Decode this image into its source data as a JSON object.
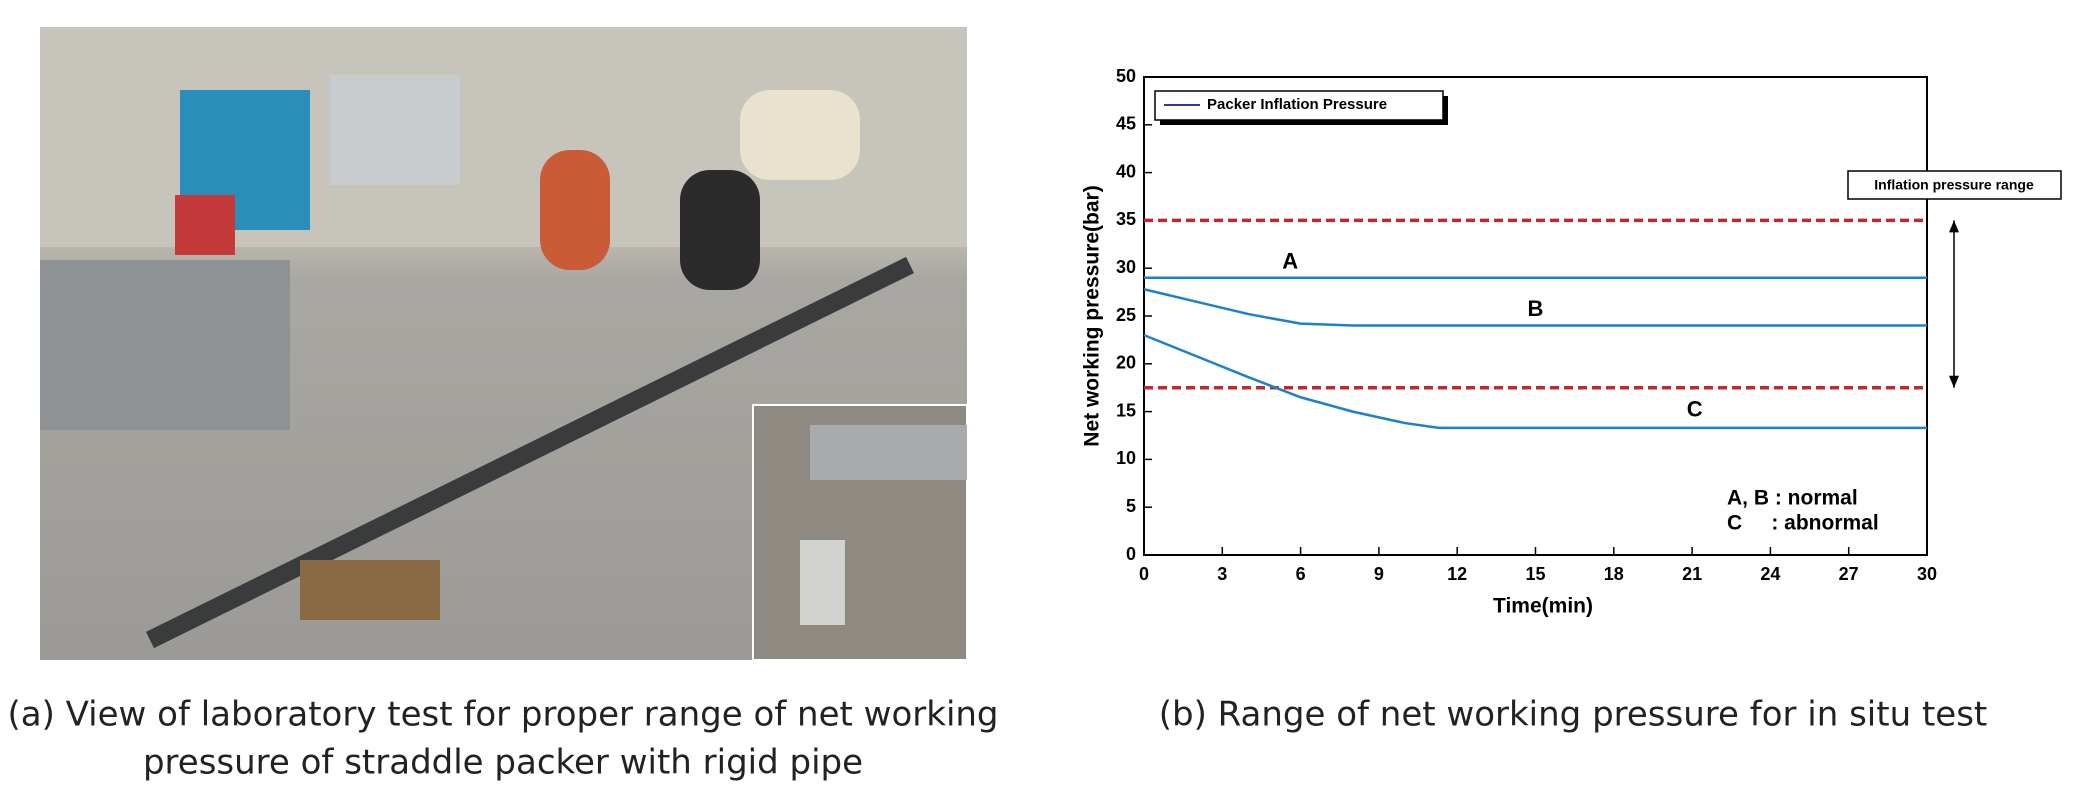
{
  "figure": {
    "caption_a_lines": [
      "(a) View of laboratory test for  proper range of net working",
      "pressure of straddle packer with rigid pipe"
    ],
    "caption_b": "(b) Range of net working pressure for in situ test"
  },
  "chart_data": {
    "type": "line",
    "x_label": "Time(min)",
    "y_label": "Net  working  pressure(bar)",
    "legend_label": "Packer Inflation Pressure",
    "legend_color": "#2b3b9a",
    "legend_position": "upper-left",
    "series": [
      {
        "name": "A",
        "color": "#1f80c8",
        "x": [
          0,
          30
        ],
        "values": [
          29,
          29
        ]
      },
      {
        "name": "B",
        "color": "#1f80c8",
        "x": [
          0,
          2,
          4,
          6,
          8,
          30
        ],
        "values": [
          27.8,
          26.5,
          25.2,
          24.2,
          24,
          24
        ]
      },
      {
        "name": "C",
        "color": "#1f80c8",
        "x": [
          0,
          2,
          4,
          6,
          8,
          10,
          11.3,
          30
        ],
        "values": [
          23,
          20.8,
          18.6,
          16.5,
          15,
          13.8,
          13.3,
          13.3
        ]
      }
    ],
    "reference_lines": [
      {
        "value": 35,
        "color": "#c0282d"
      },
      {
        "value": 17.5,
        "color": "#c0282d"
      }
    ],
    "range_label": "Inflation pressure range",
    "annotations": [
      "A, B : normal",
      "C     : abnormal"
    ],
    "xlim": [
      0,
      30
    ],
    "xticks": [
      0,
      3,
      6,
      9,
      12,
      15,
      18,
      21,
      24,
      27,
      30
    ],
    "ylim": [
      0,
      50
    ],
    "yticks": [
      0,
      5,
      10,
      15,
      20,
      25,
      30,
      35,
      40,
      45,
      50
    ]
  }
}
